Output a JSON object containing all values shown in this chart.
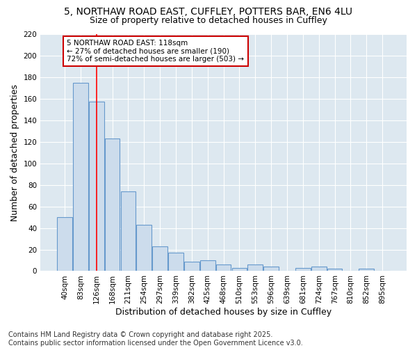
{
  "title1": "5, NORTHAW ROAD EAST, CUFFLEY, POTTERS BAR, EN6 4LU",
  "title2": "Size of property relative to detached houses in Cuffley",
  "xlabel": "Distribution of detached houses by size in Cuffley",
  "ylabel": "Number of detached properties",
  "bar_labels": [
    "40sqm",
    "83sqm",
    "126sqm",
    "168sqm",
    "211sqm",
    "254sqm",
    "297sqm",
    "339sqm",
    "382sqm",
    "425sqm",
    "468sqm",
    "510sqm",
    "553sqm",
    "596sqm",
    "639sqm",
    "681sqm",
    "724sqm",
    "767sqm",
    "810sqm",
    "852sqm",
    "895sqm"
  ],
  "bar_heights": [
    50,
    175,
    157,
    123,
    74,
    43,
    23,
    17,
    9,
    10,
    6,
    3,
    6,
    4,
    0,
    3,
    4,
    2,
    0,
    2,
    0
  ],
  "bar_color": "#ccdcec",
  "bar_edge_color": "#6699cc",
  "plot_bg_color": "#dde8f0",
  "fig_bg_color": "#ffffff",
  "red_line_x": 2.0,
  "annotation_text": "5 NORTHAW ROAD EAST: 118sqm\n← 27% of detached houses are smaller (190)\n72% of semi-detached houses are larger (503) →",
  "annotation_box_color": "#ffffff",
  "annotation_box_edge": "#cc0000",
  "ylim": [
    0,
    220
  ],
  "yticks": [
    0,
    20,
    40,
    60,
    80,
    100,
    120,
    140,
    160,
    180,
    200,
    220
  ],
  "footer_line1": "Contains HM Land Registry data © Crown copyright and database right 2025.",
  "footer_line2": "Contains public sector information licensed under the Open Government Licence v3.0.",
  "title_fontsize": 10,
  "subtitle_fontsize": 9,
  "axis_label_fontsize": 9,
  "tick_fontsize": 7.5,
  "annot_fontsize": 7.5,
  "footer_fontsize": 7
}
